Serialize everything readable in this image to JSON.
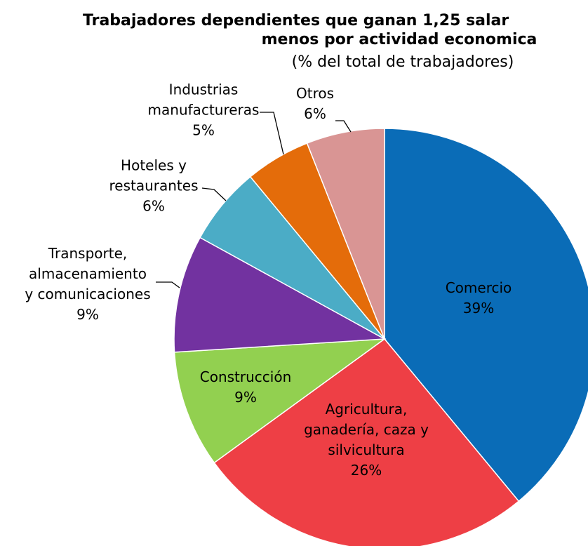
{
  "chart_data": {
    "type": "pie",
    "title": [
      "Trabajadores dependientes que ganan 1,25 salar",
      "menos por actividad economica"
    ],
    "subtitle": "(% del total de trabajadores)",
    "categories": [
      "Comercio",
      "Agricultura,\nganadería, caza y\nsilvicultura",
      "Construcción",
      "Transporte,\nalmacenamiento\ny comunicaciones",
      "Hoteles y\nrestaurantes",
      "Industrias\nmanufactureras",
      "Otros"
    ],
    "values": [
      39,
      26,
      9,
      9,
      6,
      5,
      6
    ],
    "value_labels": [
      "39%",
      "26%",
      "9%",
      "9%",
      "6%",
      "5%",
      "6%"
    ],
    "colors": [
      "#0a6cb7",
      "#ee3f45",
      "#92d050",
      "#7232a0",
      "#4bacc6",
      "#e46c0a",
      "#d99594"
    ]
  }
}
